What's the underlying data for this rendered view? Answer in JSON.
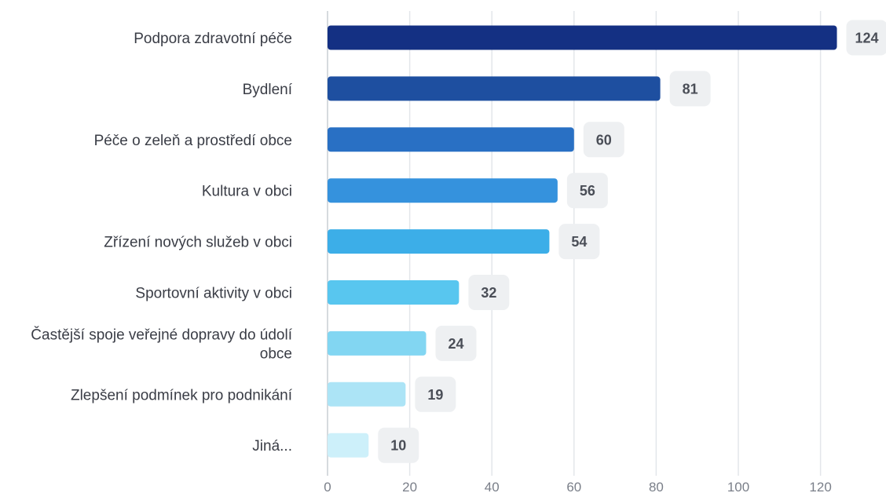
{
  "chart_data": {
    "type": "bar",
    "orientation": "horizontal",
    "categories": [
      "Podpora zdravotní péče",
      "Bydlení",
      "Péče o zeleň a prostředí obce",
      "Kultura v obci",
      "Zřízení nových služeb v obci",
      "Sportovní aktivity v obci",
      "Častější spoje veřejné dopravy do údolí obce",
      "Zlepšení podmínek pro podnikání",
      "Jiná..."
    ],
    "values": [
      124,
      81,
      60,
      56,
      54,
      32,
      24,
      19,
      10
    ],
    "colors": [
      "#143083",
      "#1e4fa0",
      "#2970c4",
      "#3592dd",
      "#3caee8",
      "#58c6ef",
      "#82d6f2",
      "#ace4f6",
      "#cdf0fa"
    ],
    "x_ticks": [
      0,
      20,
      40,
      60,
      80,
      100,
      120
    ],
    "xlim": [
      0,
      130
    ],
    "grid": true,
    "title": "",
    "xlabel": "",
    "ylabel": ""
  }
}
